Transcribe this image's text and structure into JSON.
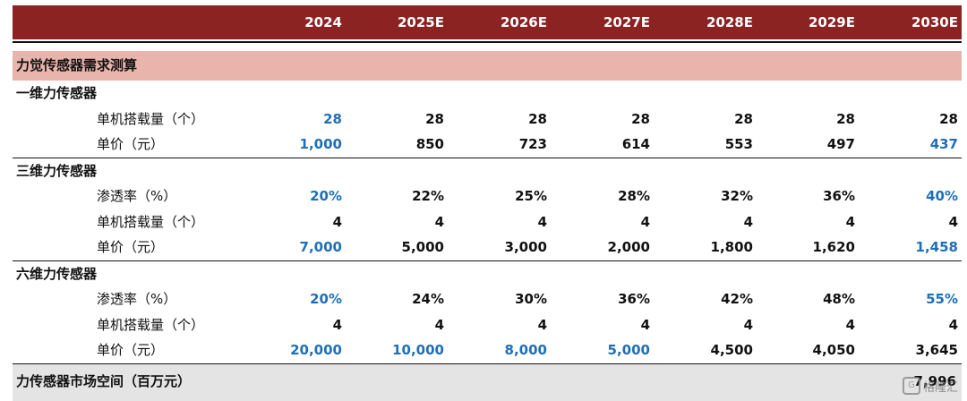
{
  "colors": {
    "header_bg": "#8c2323",
    "section_bg": "#e8b4ab",
    "total_bg": "#e4e4e4",
    "blue": "#1f6fb7",
    "black": "#111111"
  },
  "years": [
    "2024",
    "2025E",
    "2026E",
    "2027E",
    "2028E",
    "2029E",
    "2030E"
  ],
  "section_title": "力觉传感器需求测算",
  "groups": [
    {
      "title": "一维力传感器",
      "rows": [
        {
          "label": "单机搭载量（个）",
          "values": [
            "28",
            "28",
            "28",
            "28",
            "28",
            "28",
            "28"
          ],
          "colors": [
            "blue",
            "black",
            "black",
            "black",
            "black",
            "black",
            "black"
          ]
        },
        {
          "label": "单价（元）",
          "values": [
            "1,000",
            "850",
            "723",
            "614",
            "553",
            "497",
            "437"
          ],
          "colors": [
            "blue",
            "black",
            "black",
            "black",
            "black",
            "black",
            "blue"
          ]
        }
      ]
    },
    {
      "title": "三维力传感器",
      "rows": [
        {
          "label": "渗透率（%）",
          "values": [
            "20%",
            "22%",
            "25%",
            "28%",
            "32%",
            "36%",
            "40%"
          ],
          "colors": [
            "blue",
            "black",
            "black",
            "black",
            "black",
            "black",
            "blue"
          ]
        },
        {
          "label": "单机搭载量（个）",
          "values": [
            "4",
            "4",
            "4",
            "4",
            "4",
            "4",
            "4"
          ],
          "colors": [
            "black",
            "black",
            "black",
            "black",
            "black",
            "black",
            "black"
          ]
        },
        {
          "label": "单价（元）",
          "values": [
            "7,000",
            "5,000",
            "3,000",
            "2,000",
            "1,800",
            "1,620",
            "1,458"
          ],
          "colors": [
            "blue",
            "black",
            "black",
            "black",
            "black",
            "black",
            "blue"
          ]
        }
      ]
    },
    {
      "title": "六维力传感器",
      "rows": [
        {
          "label": "渗透率（%）",
          "values": [
            "20%",
            "24%",
            "30%",
            "36%",
            "42%",
            "48%",
            "55%"
          ],
          "colors": [
            "blue",
            "black",
            "black",
            "black",
            "black",
            "black",
            "blue"
          ]
        },
        {
          "label": "单机搭载量（个）",
          "values": [
            "4",
            "4",
            "4",
            "4",
            "4",
            "4",
            "4"
          ],
          "colors": [
            "black",
            "black",
            "black",
            "black",
            "black",
            "black",
            "black"
          ]
        },
        {
          "label": "单价（元）",
          "values": [
            "20,000",
            "10,000",
            "8,000",
            "5,000",
            "4,500",
            "4,050",
            "3,645"
          ],
          "colors": [
            "blue",
            "blue",
            "blue",
            "blue",
            "black",
            "black",
            "black"
          ]
        }
      ]
    }
  ],
  "total": {
    "label": "力传感器市场空间（百万元）",
    "value": "7,996"
  },
  "watermark": {
    "icon": "logo-icon",
    "text": "格隆汇"
  }
}
